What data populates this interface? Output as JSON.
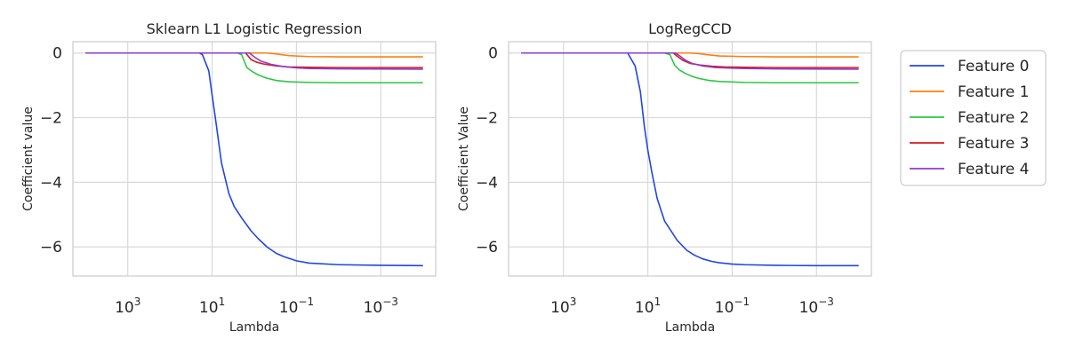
{
  "chart_data": [
    {
      "type": "line",
      "title": "Sklearn L1 Logistic Regression",
      "xlabel": "Lambda",
      "ylabel": "Coefficient value",
      "xscale": "log",
      "xaxis_reversed": true,
      "xlim": [
        20000,
        5e-05
      ],
      "ylim": [
        -6.9,
        0.35
      ],
      "grid": true,
      "x_ticks": [
        {
          "base": "10",
          "exp": "3"
        },
        {
          "base": "10",
          "exp": "1"
        },
        {
          "base": "10",
          "exp": "−1"
        },
        {
          "base": "10",
          "exp": "−3"
        }
      ],
      "y_ticks": [
        "0",
        "−2",
        "−4",
        "−6"
      ],
      "series": [
        {
          "name": "Feature 0",
          "color": "#1f45e6",
          "points": [
            [
              10000,
              0
            ],
            [
              1000,
              0
            ],
            [
              100,
              0
            ],
            [
              40,
              0
            ],
            [
              20,
              0
            ],
            [
              17,
              -0.05
            ],
            [
              12,
              -0.55
            ],
            [
              10,
              -1.3
            ],
            [
              8,
              -2.2
            ],
            [
              6,
              -3.4
            ],
            [
              4,
              -4.35
            ],
            [
              3,
              -4.75
            ],
            [
              2,
              -5.1
            ],
            [
              1.2,
              -5.5
            ],
            [
              0.8,
              -5.75
            ],
            [
              0.5,
              -6.0
            ],
            [
              0.3,
              -6.2
            ],
            [
              0.2,
              -6.3
            ],
            [
              0.1,
              -6.43
            ],
            [
              0.05,
              -6.5
            ],
            [
              0.01,
              -6.55
            ],
            [
              0.001,
              -6.57
            ],
            [
              0.0001,
              -6.58
            ]
          ]
        },
        {
          "name": "Feature 1",
          "color": "#ff7f0e",
          "points": [
            [
              10000,
              0
            ],
            [
              1000,
              0
            ],
            [
              100,
              0
            ],
            [
              1,
              0
            ],
            [
              0.5,
              0
            ],
            [
              0.3,
              -0.03
            ],
            [
              0.15,
              -0.08
            ],
            [
              0.05,
              -0.11
            ],
            [
              0.01,
              -0.12
            ],
            [
              0.0001,
              -0.12
            ]
          ]
        },
        {
          "name": "Feature 2",
          "color": "#2ac840",
          "points": [
            [
              10000,
              0
            ],
            [
              1000,
              0
            ],
            [
              100,
              0
            ],
            [
              2.5,
              0
            ],
            [
              2,
              -0.05
            ],
            [
              1.5,
              -0.45
            ],
            [
              1.1,
              -0.58
            ],
            [
              0.8,
              -0.68
            ],
            [
              0.5,
              -0.78
            ],
            [
              0.3,
              -0.85
            ],
            [
              0.15,
              -0.89
            ],
            [
              0.05,
              -0.91
            ],
            [
              0.01,
              -0.92
            ],
            [
              0.0001,
              -0.92
            ]
          ]
        },
        {
          "name": "Feature 3",
          "color": "#d7191c",
          "points": [
            [
              10000,
              0
            ],
            [
              1000,
              0
            ],
            [
              100,
              0
            ],
            [
              1.6,
              0
            ],
            [
              1.2,
              -0.2
            ],
            [
              0.9,
              -0.28
            ],
            [
              0.6,
              -0.34
            ],
            [
              0.3,
              -0.4
            ],
            [
              0.15,
              -0.43
            ],
            [
              0.05,
              -0.44
            ],
            [
              0.01,
              -0.45
            ],
            [
              0.0001,
              -0.45
            ]
          ]
        },
        {
          "name": "Feature 4",
          "color": "#8e3ccb",
          "points": [
            [
              10000,
              0
            ],
            [
              1000,
              0
            ],
            [
              100,
              0
            ],
            [
              1.3,
              0
            ],
            [
              1,
              -0.12
            ],
            [
              0.7,
              -0.25
            ],
            [
              0.4,
              -0.35
            ],
            [
              0.2,
              -0.42
            ],
            [
              0.1,
              -0.46
            ],
            [
              0.05,
              -0.48
            ],
            [
              0.01,
              -0.49
            ],
            [
              0.0001,
              -0.5
            ]
          ]
        }
      ]
    },
    {
      "type": "line",
      "title": "LogRegCCD",
      "xlabel": "Lambda",
      "ylabel": "Coefficient Value",
      "xscale": "log",
      "xaxis_reversed": true,
      "xlim": [
        20000,
        5e-05
      ],
      "ylim": [
        -6.9,
        0.35
      ],
      "grid": true,
      "x_ticks": [
        {
          "base": "10",
          "exp": "3"
        },
        {
          "base": "10",
          "exp": "1"
        },
        {
          "base": "10",
          "exp": "−1"
        },
        {
          "base": "10",
          "exp": "−3"
        }
      ],
      "y_ticks": [
        "0",
        "−2",
        "−4",
        "−6"
      ],
      "series": [
        {
          "name": "Feature 0",
          "color": "#1f45e6",
          "points": [
            [
              10000,
              0
            ],
            [
              1000,
              0
            ],
            [
              100,
              0
            ],
            [
              30,
              0
            ],
            [
              20,
              -0.4
            ],
            [
              15,
              -1.2
            ],
            [
              12,
              -2.3
            ],
            [
              10,
              -3.0
            ],
            [
              8,
              -3.7
            ],
            [
              6,
              -4.5
            ],
            [
              4,
              -5.2
            ],
            [
              3,
              -5.45
            ],
            [
              2,
              -5.8
            ],
            [
              1.2,
              -6.1
            ],
            [
              0.8,
              -6.25
            ],
            [
              0.5,
              -6.37
            ],
            [
              0.3,
              -6.45
            ],
            [
              0.2,
              -6.49
            ],
            [
              0.1,
              -6.53
            ],
            [
              0.05,
              -6.55
            ],
            [
              0.01,
              -6.57
            ],
            [
              0.001,
              -6.58
            ],
            [
              0.0001,
              -6.58
            ]
          ]
        },
        {
          "name": "Feature 1",
          "color": "#ff7f0e",
          "points": [
            [
              10000,
              0
            ],
            [
              1000,
              0
            ],
            [
              100,
              0
            ],
            [
              1,
              0
            ],
            [
              0.6,
              -0.02
            ],
            [
              0.4,
              -0.05
            ],
            [
              0.2,
              -0.09
            ],
            [
              0.05,
              -0.11
            ],
            [
              0.01,
              -0.12
            ],
            [
              0.0001,
              -0.12
            ]
          ]
        },
        {
          "name": "Feature 2",
          "color": "#2ac840",
          "points": [
            [
              10000,
              0
            ],
            [
              1000,
              0
            ],
            [
              100,
              0
            ],
            [
              4,
              0
            ],
            [
              3,
              -0.05
            ],
            [
              2.3,
              -0.38
            ],
            [
              1.8,
              -0.52
            ],
            [
              1.3,
              -0.63
            ],
            [
              0.9,
              -0.72
            ],
            [
              0.6,
              -0.79
            ],
            [
              0.35,
              -0.85
            ],
            [
              0.2,
              -0.88
            ],
            [
              0.05,
              -0.91
            ],
            [
              0.01,
              -0.92
            ],
            [
              0.0001,
              -0.92
            ]
          ]
        },
        {
          "name": "Feature 3",
          "color": "#d7191c",
          "points": [
            [
              10000,
              0
            ],
            [
              1000,
              0
            ],
            [
              100,
              0
            ],
            [
              2.5,
              0
            ],
            [
              2,
              -0.1
            ],
            [
              1.5,
              -0.22
            ],
            [
              1,
              -0.32
            ],
            [
              0.6,
              -0.37
            ],
            [
              0.3,
              -0.41
            ],
            [
              0.15,
              -0.43
            ],
            [
              0.05,
              -0.44
            ],
            [
              0.01,
              -0.45
            ],
            [
              0.0001,
              -0.45
            ]
          ]
        },
        {
          "name": "Feature 4",
          "color": "#8e3ccb",
          "points": [
            [
              10000,
              0
            ],
            [
              1000,
              0
            ],
            [
              100,
              0
            ],
            [
              2.2,
              0
            ],
            [
              1.7,
              -0.1
            ],
            [
              1.3,
              -0.22
            ],
            [
              0.9,
              -0.32
            ],
            [
              0.5,
              -0.4
            ],
            [
              0.25,
              -0.45
            ],
            [
              0.1,
              -0.47
            ],
            [
              0.05,
              -0.48
            ],
            [
              0.01,
              -0.49
            ],
            [
              0.0001,
              -0.5
            ]
          ]
        }
      ]
    }
  ],
  "legend": {
    "placement": "right",
    "items": [
      "Feature 0",
      "Feature 1",
      "Feature 2",
      "Feature 3",
      "Feature 4"
    ],
    "colors": [
      "#1f45e6",
      "#ff7f0e",
      "#2ac840",
      "#d7191c",
      "#8e3ccb"
    ]
  }
}
